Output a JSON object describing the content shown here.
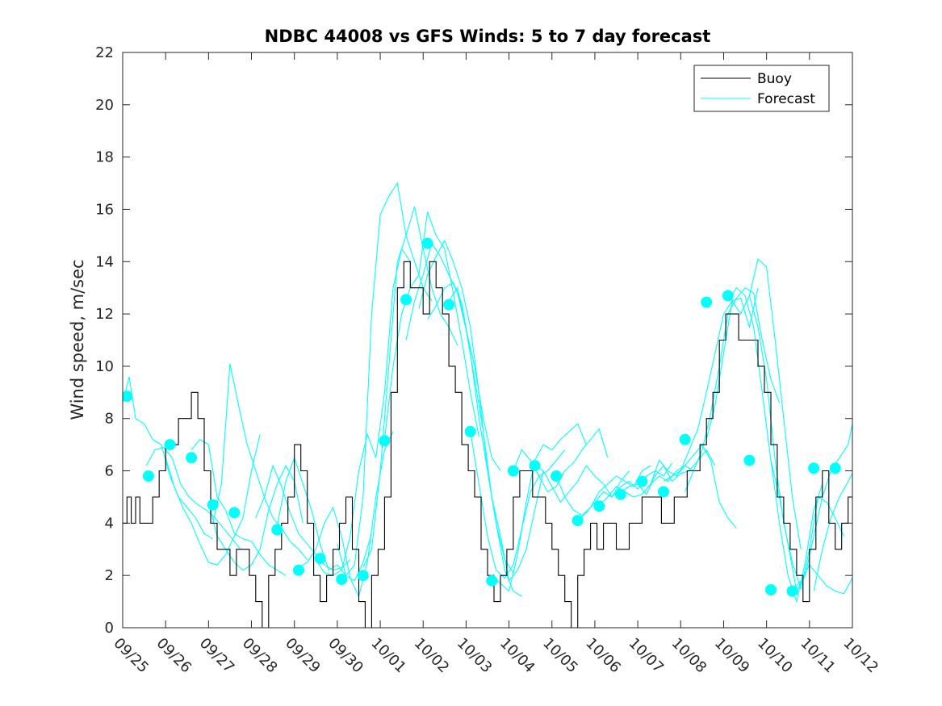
{
  "chart_data": {
    "type": "line",
    "title": "NDBC 44008 vs GFS Winds: 5 to 7 day forecast",
    "xlabel": "",
    "ylabel": "Wind speed, m/sec",
    "xlim": [
      0,
      17
    ],
    "ylim": [
      0,
      22
    ],
    "yticks": [
      0,
      2,
      4,
      6,
      8,
      10,
      12,
      14,
      16,
      18,
      20,
      22
    ],
    "xtick_labels": [
      "09/25",
      "09/26",
      "09/27",
      "09/28",
      "09/29",
      "09/30",
      "10/01",
      "10/02",
      "10/03",
      "10/04",
      "10/05",
      "10/06",
      "10/07",
      "10/08",
      "10/09",
      "10/10",
      "10/11",
      "10/12"
    ],
    "legend": {
      "position": "top-right",
      "entries": [
        "Buoy",
        "Forecast"
      ]
    },
    "colors": {
      "buoy": "#000000",
      "forecast": "#00ffff"
    },
    "buoy": {
      "name": "Buoy",
      "x": [
        0,
        0.1,
        0.2,
        0.3,
        0.4,
        0.55,
        0.7,
        0.85,
        1.0,
        1.15,
        1.3,
        1.45,
        1.6,
        1.75,
        1.9,
        2.05,
        2.2,
        2.35,
        2.5,
        2.65,
        2.8,
        2.95,
        3.1,
        3.25,
        3.4,
        3.55,
        3.7,
        3.85,
        4.0,
        4.15,
        4.3,
        4.45,
        4.6,
        4.75,
        4.9,
        5.05,
        5.2,
        5.35,
        5.5,
        5.65,
        5.8,
        5.95,
        6.1,
        6.25,
        6.4,
        6.55,
        6.7,
        6.85,
        7.0,
        7.15,
        7.3,
        7.45,
        7.6,
        7.75,
        7.9,
        8.05,
        8.2,
        8.35,
        8.5,
        8.65,
        8.8,
        8.95,
        9.1,
        9.25,
        9.4,
        9.55,
        9.7,
        9.85,
        10.0,
        10.15,
        10.3,
        10.45,
        10.6,
        10.75,
        10.9,
        11.05,
        11.2,
        11.35,
        11.5,
        11.65,
        11.8,
        11.95,
        12.1,
        12.25,
        12.4,
        12.55,
        12.7,
        12.85,
        13.0,
        13.15,
        13.3,
        13.45,
        13.6,
        13.75,
        13.9,
        14.05,
        14.2,
        14.35,
        14.5,
        14.65,
        14.8,
        14.95,
        15.1,
        15.25,
        15.4,
        15.55,
        15.7,
        15.85,
        16.0,
        16.15,
        16.3,
        16.45,
        16.6,
        16.75,
        16.9,
        17.0
      ],
      "values": [
        4,
        5,
        4,
        5,
        4,
        4,
        5,
        6,
        7,
        7,
        8,
        8,
        9,
        8,
        6,
        4,
        3,
        3,
        2,
        3,
        3,
        2,
        1,
        0,
        2,
        3,
        4,
        5,
        7,
        6,
        4,
        2,
        1,
        2,
        3,
        4,
        5,
        3,
        1,
        0,
        2,
        3,
        5,
        9,
        13,
        14,
        13,
        13,
        12,
        14,
        13,
        12,
        10,
        9,
        7,
        6,
        5,
        3,
        2,
        1,
        2,
        3,
        5,
        6,
        6,
        5,
        5,
        4,
        3,
        2,
        1,
        0,
        2,
        3,
        4,
        3,
        4,
        4,
        3,
        3,
        4,
        4,
        5,
        5,
        5,
        4,
        4,
        5,
        5,
        6,
        6,
        7,
        8,
        9,
        11,
        12,
        12,
        11,
        11,
        11,
        10,
        9,
        7,
        5,
        4,
        3,
        2,
        1,
        3,
        5,
        6,
        4,
        3,
        4,
        5,
        5
      ]
    },
    "forecast_lines": [
      {
        "x": [
          0,
          0.15,
          0.3,
          0.5,
          0.7,
          0.9,
          1.1,
          1.3,
          1.5,
          1.7,
          1.9,
          2.1
        ],
        "values": [
          8.6,
          9.6,
          8.0,
          7.8,
          7.2,
          7.0,
          5.8,
          5.0,
          4.6,
          4.2,
          3.6,
          3.4
        ]
      },
      {
        "x": [
          0.55,
          0.75,
          0.95,
          1.15,
          1.35,
          1.55,
          1.75,
          1.95,
          2.15,
          2.35,
          2.55,
          2.75
        ],
        "values": [
          6.2,
          6.8,
          6.9,
          6.5,
          5.5,
          5.0,
          4.7,
          4.5,
          4.2,
          3.8,
          3.4,
          3.0
        ]
      },
      {
        "x": [
          1.0,
          1.2,
          1.4,
          1.6,
          1.8,
          2.0,
          2.2,
          2.4,
          2.6,
          2.8,
          3.0,
          3.2
        ],
        "values": [
          6.5,
          5.4,
          4.6,
          4.0,
          3.2,
          2.5,
          2.4,
          2.8,
          3.5,
          4.2,
          6.0,
          7.4
        ]
      },
      {
        "x": [
          1.6,
          1.8,
          2.0,
          2.2,
          2.4,
          2.6,
          2.8,
          3.0,
          3.2,
          3.4,
          3.6,
          3.8
        ],
        "values": [
          6.8,
          7.2,
          7.0,
          5.0,
          4.5,
          3.6,
          3.4,
          3.3,
          2.8,
          2.4,
          2.2,
          2.0
        ]
      },
      {
        "x": [
          2.0,
          2.2,
          2.4,
          2.6,
          2.8,
          3.0,
          3.2,
          3.4,
          3.6,
          3.8,
          4.0,
          4.2
        ],
        "values": [
          4.8,
          3.5,
          3.0,
          2.5,
          2.2,
          2.4,
          3.0,
          4.5,
          5.5,
          6.2,
          5.6,
          4.0
        ]
      },
      {
        "x": [
          2.1,
          2.3,
          2.5,
          2.7,
          2.9,
          3.1,
          3.3,
          3.5,
          3.7,
          3.9,
          4.1,
          4.3
        ],
        "values": [
          4.0,
          5.5,
          10.1,
          8.5,
          7.0,
          6.0,
          5.0,
          4.2,
          3.8,
          3.3,
          3.0,
          2.6
        ]
      },
      {
        "x": [
          3.1,
          3.3,
          3.5,
          3.7,
          3.9,
          4.1,
          4.3,
          4.5,
          4.7,
          4.9,
          5.1,
          5.3
        ],
        "values": [
          4.2,
          5.0,
          6.2,
          5.4,
          4.4,
          3.6,
          3.2,
          2.8,
          2.4,
          2.2,
          2.3,
          2.6
        ]
      },
      {
        "x": [
          3.6,
          3.8,
          4.0,
          4.2,
          4.4,
          4.6,
          4.8,
          5.0,
          5.2,
          5.4,
          5.6,
          5.8
        ],
        "values": [
          3.9,
          5.6,
          6.5,
          5.5,
          4.5,
          3.2,
          2.2,
          2.4,
          2.0,
          1.8,
          2.5,
          3.6
        ]
      },
      {
        "x": [
          4.1,
          4.3,
          4.5,
          4.7,
          4.9,
          5.1,
          5.3,
          5.5,
          5.7,
          5.9,
          6.1,
          6.3
        ],
        "values": [
          2.3,
          2.5,
          3.0,
          4.0,
          4.6,
          3.5,
          1.9,
          1.2,
          2.5,
          5.0,
          6.8,
          7.5
        ]
      },
      {
        "x": [
          4.5,
          4.7,
          4.9,
          5.1,
          5.3,
          5.5,
          5.7,
          5.9,
          6.1,
          6.3,
          6.5,
          6.7
        ],
        "values": [
          2.6,
          2.1,
          2.0,
          2.2,
          3.5,
          6.0,
          7.4,
          6.5,
          9.0,
          13.0,
          14.5,
          14.0
        ]
      },
      {
        "x": [
          5.0,
          5.2,
          5.4,
          5.6,
          5.8,
          6.0,
          6.2,
          6.4,
          6.6,
          6.8,
          7.0,
          7.2
        ],
        "values": [
          3.2,
          2.0,
          2.4,
          5.0,
          12.0,
          15.8,
          16.5,
          17.0,
          15.0,
          14.0,
          13.0,
          12.5
        ]
      },
      {
        "x": [
          5.6,
          5.8,
          6.0,
          6.2,
          6.4,
          6.6,
          6.8,
          7.0,
          7.2,
          7.4,
          7.6,
          7.8
        ],
        "values": [
          2.3,
          3.0,
          6.0,
          10.0,
          14.0,
          15.0,
          16.1,
          14.5,
          13.0,
          12.0,
          11.5,
          10.8
        ]
      },
      {
        "x": [
          6.1,
          6.3,
          6.5,
          6.7,
          6.9,
          7.1,
          7.3,
          7.5,
          7.7,
          7.9,
          8.1,
          8.3
        ],
        "values": [
          7.2,
          10.0,
          12.0,
          13.0,
          13.5,
          15.9,
          15.0,
          14.5,
          12.8,
          11.0,
          9.0,
          7.3
        ]
      },
      {
        "x": [
          6.6,
          6.8,
          7.0,
          7.2,
          7.4,
          7.6,
          7.8,
          8.0,
          8.2,
          8.4,
          8.6,
          8.8
        ],
        "values": [
          11.0,
          12.5,
          13.5,
          14.7,
          14.2,
          13.5,
          12.8,
          11.4,
          10.0,
          8.0,
          6.5,
          6.0
        ]
      },
      {
        "x": [
          6.9,
          7.1,
          7.3,
          7.5,
          7.7,
          7.9,
          8.1,
          8.3,
          8.5,
          8.7,
          8.9,
          9.1
        ],
        "values": [
          12.2,
          13.5,
          14.2,
          14.8,
          14.0,
          13.0,
          11.5,
          9.0,
          6.0,
          4.0,
          2.6,
          2.1
        ]
      },
      {
        "x": [
          7.1,
          7.3,
          7.5,
          7.7,
          7.9,
          8.1,
          8.3,
          8.5,
          8.7,
          8.9,
          9.1,
          9.3
        ],
        "values": [
          11.8,
          12.3,
          13.0,
          13.2,
          12.4,
          10.5,
          8.0,
          6.0,
          4.0,
          2.2,
          1.4,
          1.2
        ]
      },
      {
        "x": [
          7.6,
          7.8,
          8.0,
          8.2,
          8.4,
          8.6,
          8.8,
          9.0,
          9.2,
          9.4,
          9.6,
          9.8
        ],
        "values": [
          12.5,
          13.0,
          11.4,
          9.5,
          7.5,
          5.0,
          3.5,
          1.8,
          2.2,
          3.0,
          4.5,
          6.0
        ]
      },
      {
        "x": [
          8.1,
          8.3,
          8.5,
          8.7,
          8.9,
          9.1,
          9.3,
          9.5,
          9.7,
          9.9,
          10.1,
          10.3
        ],
        "values": [
          7.5,
          5.5,
          3.5,
          2.2,
          1.9,
          2.4,
          3.8,
          5.2,
          5.8,
          6.0,
          6.4,
          6.8
        ]
      },
      {
        "x": [
          8.6,
          8.8,
          9.0,
          9.2,
          9.4,
          9.6,
          9.8,
          10.0,
          10.2,
          10.4,
          10.6,
          10.8
        ],
        "values": [
          2.0,
          1.7,
          1.4,
          2.8,
          4.8,
          6.4,
          7.0,
          6.8,
          7.2,
          7.5,
          7.8,
          7.0
        ]
      },
      {
        "x": [
          9.1,
          9.3,
          9.5,
          9.7,
          9.9,
          10.1,
          10.3,
          10.5,
          10.7,
          10.9,
          11.1,
          11.3
        ],
        "values": [
          6.0,
          6.8,
          6.4,
          5.8,
          5.2,
          5.4,
          6.0,
          6.3,
          6.8,
          7.2,
          7.6,
          6.5
        ]
      },
      {
        "x": [
          9.6,
          9.8,
          10.0,
          10.2,
          10.4,
          10.6,
          10.8,
          11.0,
          11.2,
          11.4,
          11.6,
          11.8
        ],
        "values": [
          6.2,
          6.0,
          5.4,
          4.8,
          5.2,
          5.6,
          6.2,
          5.8,
          5.5,
          5.0,
          5.6,
          6.0
        ]
      },
      {
        "x": [
          10.1,
          10.3,
          10.5,
          10.7,
          10.9,
          11.1,
          11.3,
          11.5,
          11.7,
          11.9,
          12.1,
          12.3
        ],
        "values": [
          5.8,
          5.0,
          4.5,
          4.3,
          4.6,
          5.2,
          5.5,
          5.8,
          5.6,
          5.4,
          6.0,
          6.2
        ]
      },
      {
        "x": [
          10.6,
          10.8,
          11.0,
          11.2,
          11.4,
          11.6,
          11.8,
          12.0,
          12.2,
          12.4,
          12.6,
          12.8
        ],
        "values": [
          4.1,
          4.4,
          4.8,
          5.2,
          5.0,
          5.4,
          5.6,
          5.3,
          5.8,
          6.0,
          5.8,
          6.3
        ]
      },
      {
        "x": [
          11.1,
          11.3,
          11.5,
          11.7,
          11.9,
          12.1,
          12.3,
          12.5,
          12.7,
          12.9,
          13.1,
          13.3
        ],
        "values": [
          4.7,
          5.0,
          5.4,
          5.2,
          5.0,
          5.1,
          5.5,
          6.4,
          6.0,
          5.8,
          6.2,
          6.0
        ]
      },
      {
        "x": [
          11.6,
          11.8,
          12.0,
          12.2,
          12.4,
          12.6,
          12.8,
          13.0,
          13.2,
          13.4,
          13.6,
          13.8
        ],
        "values": [
          5.2,
          5.4,
          5.5,
          5.1,
          5.8,
          6.2,
          5.6,
          5.9,
          6.0,
          6.4,
          6.8,
          6.2
        ]
      },
      {
        "x": [
          12.1,
          12.3,
          12.5,
          12.7,
          12.9,
          13.1,
          13.3,
          13.5,
          13.7,
          13.9,
          14.1,
          14.3
        ],
        "values": [
          5.1,
          5.5,
          5.8,
          5.6,
          6.0,
          6.2,
          6.6,
          7.0,
          6.4,
          4.8,
          4.2,
          3.8
        ]
      },
      {
        "x": [
          12.6,
          12.8,
          13.0,
          13.2,
          13.4,
          13.6,
          13.8,
          14.0,
          14.2,
          14.4,
          14.6,
          14.8
        ],
        "values": [
          5.6,
          5.8,
          6.0,
          6.8,
          7.6,
          9.0,
          10.5,
          12.0,
          12.5,
          12.6,
          11.5,
          13.0
        ]
      },
      {
        "x": [
          13.1,
          13.3,
          13.5,
          13.7,
          13.9,
          14.1,
          14.3,
          14.5,
          14.7,
          14.9,
          15.1,
          15.3
        ],
        "values": [
          5.2,
          6.0,
          6.8,
          8.2,
          10.0,
          12.0,
          12.6,
          13.0,
          12.8,
          11.0,
          9.5,
          8.6
        ]
      },
      {
        "x": [
          13.6,
          13.8,
          14.0,
          14.2,
          14.4,
          14.6,
          14.8,
          15.0,
          15.2,
          15.4,
          15.6,
          15.8
        ],
        "values": [
          7.2,
          8.5,
          10.5,
          12.5,
          12.0,
          12.7,
          14.1,
          13.8,
          11.0,
          8.0,
          5.0,
          3.0
        ]
      },
      {
        "x": [
          14.1,
          14.3,
          14.5,
          14.7,
          14.9,
          15.1,
          15.3,
          15.5,
          15.7,
          15.9,
          16.1,
          16.3
        ],
        "values": [
          12.5,
          13.0,
          12.7,
          11.5,
          9.0,
          6.4,
          4.0,
          2.0,
          1.0,
          2.5,
          4.5,
          5.5
        ]
      },
      {
        "x": [
          14.6,
          14.8,
          15.0,
          15.2,
          15.4,
          15.6,
          15.8,
          16.0,
          16.2,
          16.4,
          16.6,
          16.8
        ],
        "values": [
          12.7,
          11.5,
          9.5,
          6.4,
          4.0,
          2.5,
          1.5,
          3.0,
          5.0,
          4.8,
          4.2,
          3.5
        ]
      },
      {
        "x": [
          15.1,
          15.3,
          15.5,
          15.7,
          15.9,
          16.1,
          16.3,
          16.5,
          16.7,
          16.9,
          17.0
        ],
        "values": [
          6.4,
          5.0,
          3.2,
          1.4,
          2.0,
          3.5,
          5.0,
          6.0,
          6.5,
          7.0,
          7.8
        ]
      },
      {
        "x": [
          15.6,
          15.8,
          16.0,
          16.2,
          16.4,
          16.6,
          16.8,
          17.0
        ],
        "values": [
          1.4,
          1.8,
          2.4,
          2.0,
          1.6,
          1.4,
          1.3,
          1.9
        ]
      },
      {
        "x": [
          16.1,
          16.3,
          16.5,
          16.7,
          16.9,
          17.0
        ],
        "values": [
          1.4,
          3.0,
          4.2,
          5.0,
          5.6,
          5.9
        ]
      }
    ],
    "forecast_markers": {
      "x": [
        0.1,
        0.6,
        1.1,
        1.6,
        2.1,
        2.6,
        3.6,
        3.6,
        3.6,
        4.1,
        4.6,
        5.1,
        5.6,
        6.1,
        6.6,
        7.1,
        7.6,
        8.1,
        8.6,
        9.1,
        9.6,
        10.1,
        10.6,
        11.1,
        11.6,
        12.1,
        12.6,
        13.1,
        13.6,
        14.1,
        14.6,
        15.1,
        15.6,
        16.1,
        16.6
      ],
      "values": [
        8.85,
        5.8,
        7.0,
        6.5,
        4.7,
        4.4,
        3.75,
        3.75,
        3.75,
        2.2,
        2.65,
        1.85,
        2.0,
        7.15,
        12.55,
        14.7,
        12.35,
        7.5,
        1.8,
        6.0,
        6.2,
        5.8,
        4.1,
        4.65,
        5.1,
        5.6,
        5.2,
        7.2,
        12.45,
        12.7,
        6.4,
        1.45,
        1.4,
        6.1,
        6.1
      ]
    }
  }
}
